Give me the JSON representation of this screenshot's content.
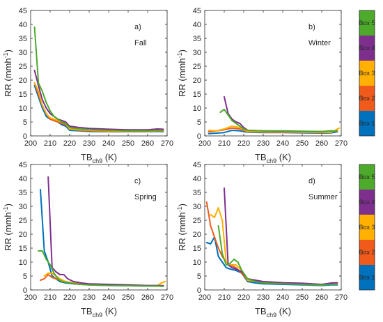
{
  "colors": {
    "box1": "#0072BD",
    "box2": "#F05A1A",
    "box3": "#FFB000",
    "box4": "#7E2F8E",
    "box5": "#4DAA2B"
  },
  "colorbars": [
    {
      "labels": [
        "Box 5",
        "Box 4",
        "Box 3",
        "Box 2",
        "Box 1"
      ]
    },
    {
      "labels": [
        "Box 5",
        "Box 4",
        "Box 3",
        "Box 2",
        "Box 1"
      ]
    }
  ],
  "chart_data": [
    {
      "type": "line",
      "panel_label": "a)",
      "season": "Fall",
      "xlabel_main": "TB",
      "xlabel_sub": "ch9",
      "xlabel_unit": " (K)",
      "ylabel_main": "RR (mmh",
      "ylabel_sup": "-1",
      "ylabel_end": ")",
      "xlim": [
        200,
        270
      ],
      "ylim": [
        0,
        45
      ],
      "xticks": [
        "200",
        "210",
        "220",
        "230",
        "240",
        "250",
        "260",
        "270"
      ],
      "yticks": [
        "0",
        "5",
        "10",
        "15",
        "20",
        "25",
        "30",
        "35",
        "40",
        "45"
      ],
      "series": [
        {
          "color_key": "box1",
          "x": [
            202,
            204,
            206,
            208,
            210,
            212,
            214,
            216,
            218,
            220,
            225,
            230,
            240,
            250,
            260,
            265,
            268
          ],
          "y": [
            18,
            14,
            10,
            7,
            6,
            5.5,
            5,
            4,
            3.5,
            2,
            1.8,
            1.6,
            1.5,
            1.5,
            1.5,
            1.6,
            1.5
          ]
        },
        {
          "color_key": "box2",
          "x": [
            202,
            204,
            206,
            208,
            210,
            212,
            214,
            216,
            218,
            220,
            225,
            230,
            240,
            250,
            260,
            265,
            268
          ],
          "y": [
            19,
            15,
            11,
            8,
            6,
            5.5,
            5,
            4.5,
            4,
            2.5,
            2,
            1.8,
            1.6,
            1.6,
            1.6,
            1.8,
            1.7
          ]
        },
        {
          "color_key": "box3",
          "x": [
            202,
            204,
            206,
            208,
            210,
            212,
            214,
            216,
            218,
            220,
            225,
            230,
            240,
            250,
            260,
            265,
            268
          ],
          "y": [
            19,
            16,
            11,
            8,
            6.5,
            6,
            5.5,
            5,
            4.5,
            2.5,
            2.2,
            2,
            1.8,
            1.7,
            1.7,
            1.9,
            1.8
          ]
        },
        {
          "color_key": "box4",
          "x": [
            202,
            204,
            206,
            208,
            210,
            212,
            214,
            216,
            218,
            220,
            225,
            230,
            240,
            250,
            260,
            265,
            268
          ],
          "y": [
            23.5,
            18,
            13,
            10,
            8,
            7,
            6,
            5.5,
            5,
            3.5,
            3,
            2.7,
            2.4,
            2.2,
            2.2,
            2.5,
            2.4
          ]
        },
        {
          "color_key": "box5",
          "x": [
            202,
            204,
            206,
            208,
            210,
            212,
            214,
            216,
            218,
            220,
            225,
            230,
            240,
            250,
            260,
            265,
            268
          ],
          "y": [
            39,
            19,
            16,
            12,
            9,
            7,
            6,
            5,
            4.5,
            3,
            2.5,
            2.2,
            2,
            1.8,
            1.8,
            2,
            1.9
          ]
        }
      ]
    },
    {
      "type": "line",
      "panel_label": "b)",
      "season": "Winter",
      "xlabel_main": "TB",
      "xlabel_sub": "ch9",
      "xlabel_unit": " (K)",
      "ylabel_main": "RR (mmh",
      "ylabel_sup": "-1",
      "ylabel_end": ")",
      "xlim": [
        200,
        270
      ],
      "ylim": [
        0,
        45
      ],
      "xticks": [
        "200",
        "210",
        "220",
        "230",
        "240",
        "250",
        "260",
        "270"
      ],
      "yticks": [
        "0",
        "5",
        "10",
        "15",
        "20",
        "25",
        "30",
        "35",
        "40",
        "45"
      ],
      "series": [
        {
          "color_key": "box1",
          "x": [
            202,
            206,
            210,
            214,
            218,
            222,
            230,
            240,
            250,
            260,
            265,
            268
          ],
          "y": [
            0.8,
            1,
            1.2,
            2,
            1.8,
            1.3,
            1.2,
            1.2,
            1.1,
            1,
            1.1,
            1.5
          ]
        },
        {
          "color_key": "box2",
          "x": [
            202,
            206,
            210,
            214,
            218,
            222,
            230,
            240,
            250,
            260,
            265,
            268
          ],
          "y": [
            1.5,
            1.8,
            2.2,
            2.8,
            2.5,
            1.5,
            1.4,
            1.3,
            1.3,
            1.2,
            1.5,
            2
          ]
        },
        {
          "color_key": "box3",
          "x": [
            202,
            206,
            210,
            214,
            218,
            222,
            230,
            240,
            250,
            260,
            265,
            269
          ],
          "y": [
            2,
            1.8,
            2.5,
            3.5,
            3,
            1.6,
            1.5,
            1.4,
            1.3,
            1.2,
            1.3,
            2.8
          ]
        },
        {
          "color_key": "box4",
          "x": [
            210,
            212,
            214,
            216,
            218,
            220,
            222,
            230,
            240,
            250,
            260,
            265,
            268
          ],
          "y": [
            14,
            8,
            6,
            5,
            4.5,
            3,
            2,
            1.8,
            1.7,
            1.6,
            1.5,
            1.8,
            1.6
          ]
        },
        {
          "color_key": "box5",
          "x": [
            208,
            210,
            212,
            214,
            216,
            218,
            220,
            222,
            230,
            240,
            250,
            260,
            265,
            268
          ],
          "y": [
            8.5,
            9.5,
            7.5,
            5.5,
            4.5,
            3.5,
            2.5,
            2,
            1.8,
            1.8,
            1.7,
            1.6,
            1.8,
            1.7
          ]
        }
      ]
    },
    {
      "type": "line",
      "panel_label": "c)",
      "season": "Spring",
      "xlabel_main": "TB",
      "xlabel_sub": "ch9",
      "xlabel_unit": " (K)",
      "ylabel_main": "RR (mmh",
      "ylabel_sup": "-1",
      "ylabel_end": ")",
      "xlim": [
        200,
        270
      ],
      "ylim": [
        0,
        45
      ],
      "xticks": [
        "200",
        "210",
        "220",
        "230",
        "240",
        "250",
        "260",
        "270"
      ],
      "yticks": [
        "0",
        "5",
        "10",
        "15",
        "20",
        "25",
        "30",
        "35",
        "40",
        "45"
      ],
      "series": [
        {
          "color_key": "box1",
          "x": [
            205,
            207,
            209,
            211,
            213,
            215,
            218,
            222,
            226,
            230,
            240,
            250,
            260,
            265,
            268
          ],
          "y": [
            36,
            14,
            10,
            5,
            4,
            3,
            2.5,
            2.2,
            2,
            1.8,
            1.6,
            1.5,
            1.4,
            1.4,
            1.3
          ]
        },
        {
          "color_key": "box2",
          "x": [
            205,
            207,
            209,
            211,
            213,
            215,
            218,
            222,
            226,
            230,
            240,
            250,
            260,
            265,
            268
          ],
          "y": [
            3.5,
            4,
            5.5,
            4.5,
            4,
            3.5,
            3,
            2.5,
            2.3,
            2,
            1.8,
            1.6,
            1.5,
            1.5,
            1.6
          ]
        },
        {
          "color_key": "box3",
          "x": [
            207,
            209,
            211,
            213,
            215,
            218,
            222,
            226,
            230,
            240,
            250,
            260,
            265,
            267,
            269
          ],
          "y": [
            5,
            6,
            6,
            5,
            4,
            3,
            2.5,
            2.2,
            2,
            1.8,
            1.7,
            1.5,
            1.5,
            2.5,
            3
          ]
        },
        {
          "color_key": "box4",
          "x": [
            209,
            211,
            213,
            215,
            217,
            219,
            222,
            226,
            230,
            240,
            250,
            260,
            265,
            268
          ],
          "y": [
            40.5,
            8,
            6.5,
            5.5,
            5.5,
            4,
            3,
            2.5,
            2.2,
            2,
            1.8,
            1.6,
            1.6,
            1.5
          ]
        },
        {
          "color_key": "box5",
          "x": [
            204,
            206,
            208,
            210,
            212,
            214,
            216,
            220,
            225,
            230,
            240,
            250,
            260,
            265,
            268
          ],
          "y": [
            14,
            14,
            11,
            9,
            6,
            4,
            3,
            2.5,
            2,
            1.8,
            1.6,
            1.5,
            1.4,
            1.4,
            1.3
          ]
        }
      ]
    },
    {
      "type": "line",
      "panel_label": "d)",
      "season": "Summer",
      "xlabel_main": "TB",
      "xlabel_sub": "ch9",
      "xlabel_unit": " (K)",
      "ylabel_main": "RR (mmh",
      "ylabel_sup": "-1",
      "ylabel_end": ")",
      "xlim": [
        200,
        270
      ],
      "ylim": [
        0,
        45
      ],
      "xticks": [
        "200",
        "210",
        "220",
        "230",
        "240",
        "250",
        "260",
        "270"
      ],
      "yticks": [
        "0",
        "5",
        "10",
        "15",
        "20",
        "25",
        "30",
        "35",
        "40",
        "45"
      ],
      "series": [
        {
          "color_key": "box1",
          "x": [
            201,
            203,
            205,
            207,
            209,
            211,
            213,
            216,
            219,
            222,
            226,
            230,
            240,
            250,
            260,
            265,
            268
          ],
          "y": [
            17,
            16.5,
            19,
            12,
            10,
            8,
            7.5,
            7,
            6,
            3,
            2.5,
            2.2,
            2,
            1.8,
            1.6,
            1.8,
            1.8
          ]
        },
        {
          "color_key": "box2",
          "x": [
            201,
            203,
            205,
            207,
            209,
            211,
            213,
            216,
            219,
            222,
            226,
            230,
            240,
            250,
            260,
            265,
            268
          ],
          "y": [
            31.5,
            23,
            19,
            15,
            12,
            10,
            9,
            8,
            6,
            3.5,
            3,
            2.8,
            2.5,
            2,
            1.8,
            2.2,
            2.5
          ]
        },
        {
          "color_key": "box3",
          "x": [
            203,
            205,
            207,
            209,
            211,
            213,
            216,
            219,
            222,
            226,
            230,
            240,
            250,
            260,
            265,
            268
          ],
          "y": [
            27,
            26,
            29.5,
            25,
            10,
            9,
            9,
            7,
            3.5,
            3,
            2.8,
            2.5,
            2,
            1.8,
            2.2,
            2.2
          ]
        },
        {
          "color_key": "box4",
          "x": [
            210,
            212,
            214,
            216,
            219,
            222,
            226,
            230,
            240,
            250,
            260,
            265,
            268
          ],
          "y": [
            36.5,
            9,
            8,
            7.5,
            6.5,
            4,
            3.5,
            3,
            2.6,
            2.4,
            2,
            2.5,
            2.6
          ]
        },
        {
          "color_key": "box5",
          "x": [
            207,
            209,
            211,
            213,
            215,
            217,
            219,
            222,
            226,
            230,
            240,
            250,
            260,
            265,
            268
          ],
          "y": [
            23,
            13,
            9,
            9.5,
            11,
            10,
            7,
            4,
            3,
            2.5,
            2.2,
            2,
            1.8,
            2,
            2
          ]
        }
      ]
    }
  ]
}
